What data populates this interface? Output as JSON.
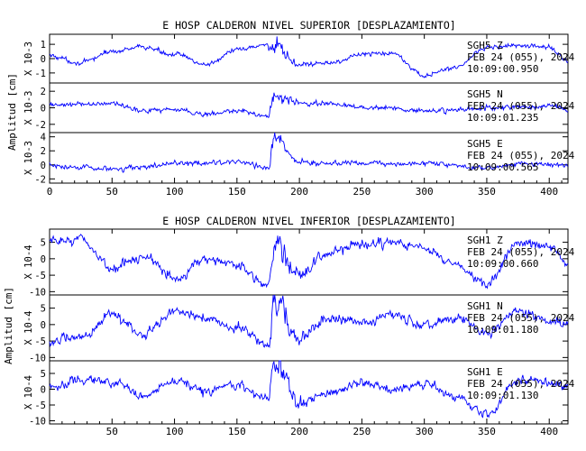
{
  "figure": {
    "groups": [
      {
        "title": "E HOSP CALDERON NIVEL SUPERIOR [DESPLAZAMIENTO]",
        "ylabel": "Amplitud [cm]",
        "xticks": [
          "0",
          "50",
          "100",
          "150",
          "200",
          "250",
          "300",
          "350",
          "400"
        ],
        "panels": [
          {
            "scale": "X 10-3",
            "yticks": [
              "1",
              "0",
              "-1"
            ],
            "annotations": [
              "SGH5 Z",
              "FEB 24 (055), 2024",
              "10:09:00.950"
            ]
          },
          {
            "scale": "X 10-3",
            "yticks": [
              "2",
              "0",
              "-2"
            ],
            "annotations": [
              "SGH5 N",
              "FEB 24 (055), 2024",
              "10:09:01.235"
            ]
          },
          {
            "scale": "X 10-3",
            "yticks": [
              "4",
              "2",
              "0",
              "-2"
            ],
            "annotations": [
              "SGH5 E",
              "FEB 24 (055), 2024",
              "10:09:00.565"
            ]
          }
        ]
      },
      {
        "title": "E HOSP CALDERON NIVEL INFERIOR [DESPLAZAMIENTO]",
        "ylabel": "Amplitud [cm]",
        "xticks": [
          "50",
          "100",
          "150",
          "200",
          "250",
          "300",
          "350",
          "400"
        ],
        "panels": [
          {
            "scale": "X 10-4",
            "yticks": [
              "5",
              "0",
              "-5",
              "-10"
            ],
            "annotations": [
              "SGH1 Z",
              "FEB 24 (055), 2024",
              "10:09:00.660"
            ]
          },
          {
            "scale": "X 10-4",
            "yticks": [
              "5",
              "0",
              "-5",
              "-10"
            ],
            "annotations": [
              "SGH1 N",
              "FEB 24 (055), 2024",
              "10:09:01.180"
            ]
          },
          {
            "scale": "X 10-4",
            "yticks": [
              "5",
              "0",
              "-5",
              "-10"
            ],
            "annotations": [
              "SGH1 E",
              "FEB 24 (055), 2024",
              "10:09:01.130"
            ]
          }
        ]
      }
    ]
  },
  "colors": {
    "trace": "#0000ff",
    "axes": "#000000",
    "background": "#ffffff"
  },
  "chart_data": [
    {
      "type": "line",
      "title": "E HOSP CALDERON NIVEL SUPERIOR [DESPLAZAMIENTO]",
      "ylabel": "Amplitud [cm]",
      "xlim": [
        0,
        415
      ],
      "event_time": 178,
      "series": [
        {
          "name": "SGH5 Z",
          "ylim": [
            -1.7,
            1.7
          ],
          "x": [
            0,
            25,
            50,
            75,
            100,
            125,
            150,
            175,
            180,
            200,
            225,
            250,
            275,
            300,
            325,
            350,
            375,
            400,
            415
          ],
          "y": [
            0.2,
            -0.3,
            0.5,
            0.8,
            0.3,
            -0.4,
            0.6,
            1.0,
            0.6,
            -0.4,
            -0.3,
            0.3,
            0.4,
            -1.2,
            -0.6,
            0.8,
            0.9,
            0.8,
            -0.2
          ]
        },
        {
          "name": "SGH5 N",
          "ylim": [
            -3,
            3
          ],
          "x": [
            0,
            25,
            50,
            75,
            100,
            125,
            150,
            175,
            180,
            200,
            225,
            250,
            275,
            300,
            325,
            350,
            375,
            400,
            415
          ],
          "y": [
            0.3,
            0.4,
            0.5,
            -0.3,
            -0.2,
            -0.8,
            -0.4,
            -1.0,
            1.5,
            0.6,
            0.5,
            0.1,
            0,
            -0.4,
            -0.3,
            0,
            0.1,
            0.2,
            -0.2
          ]
        },
        {
          "name": "SGH5 E",
          "ylim": [
            -2.6,
            4.6
          ],
          "x": [
            0,
            25,
            50,
            75,
            100,
            125,
            150,
            175,
            180,
            200,
            225,
            250,
            275,
            300,
            325,
            350,
            375,
            400,
            415
          ],
          "y": [
            0,
            -0.4,
            -0.6,
            -0.3,
            0.2,
            0.2,
            0.5,
            -0.4,
            3.6,
            0.3,
            0.2,
            0.3,
            0.1,
            0.2,
            -0.2,
            -0.4,
            0.1,
            0.1,
            -0.1
          ]
        }
      ]
    },
    {
      "type": "line",
      "title": "E HOSP CALDERON NIVEL INFERIOR [DESPLAZAMIENTO]",
      "ylabel": "Amplitud [cm]",
      "xlim": [
        0,
        415
      ],
      "event_time": 178,
      "series": [
        {
          "name": "SGH1 Z",
          "ylim": [
            -11,
            9
          ],
          "x": [
            0,
            25,
            50,
            75,
            100,
            125,
            150,
            175,
            180,
            200,
            225,
            250,
            275,
            300,
            325,
            350,
            375,
            400,
            415
          ],
          "y": [
            5,
            6,
            -3,
            1,
            -6,
            0,
            -2,
            -8,
            4,
            -5,
            2,
            4,
            5,
            3,
            -2,
            -8,
            5,
            4,
            -2
          ]
        },
        {
          "name": "SGH1 N",
          "ylim": [
            -11,
            9
          ],
          "x": [
            0,
            25,
            50,
            75,
            100,
            125,
            150,
            175,
            180,
            200,
            225,
            250,
            275,
            300,
            325,
            350,
            375,
            400,
            415
          ],
          "y": [
            -5,
            -4,
            3,
            -3,
            4,
            2,
            -1,
            -6,
            7,
            -4,
            2,
            1,
            3,
            0,
            2,
            -3,
            4,
            1,
            0
          ]
        },
        {
          "name": "SGH1 E",
          "ylim": [
            -11,
            9
          ],
          "x": [
            0,
            25,
            50,
            75,
            100,
            125,
            150,
            175,
            180,
            200,
            225,
            250,
            275,
            300,
            325,
            350,
            375,
            400,
            415
          ],
          "y": [
            1,
            3,
            2,
            -2,
            3,
            -1,
            1,
            -3,
            8,
            -4,
            -1,
            2,
            0,
            2,
            -2,
            -8,
            3,
            2,
            1
          ]
        }
      ]
    }
  ]
}
